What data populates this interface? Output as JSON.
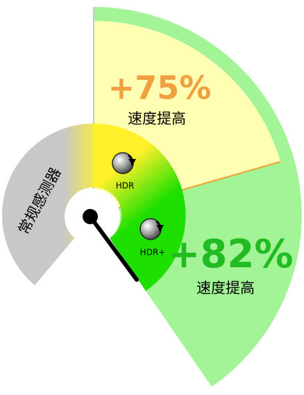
{
  "sensor_label": "常规感测器",
  "hdr": {
    "icon_label": "HDR",
    "gain": "+75%",
    "caption": "速度提高"
  },
  "hdr_plus": {
    "icon_label": "HDR+",
    "gain": "+82%",
    "caption": "速度提高"
  }
}
